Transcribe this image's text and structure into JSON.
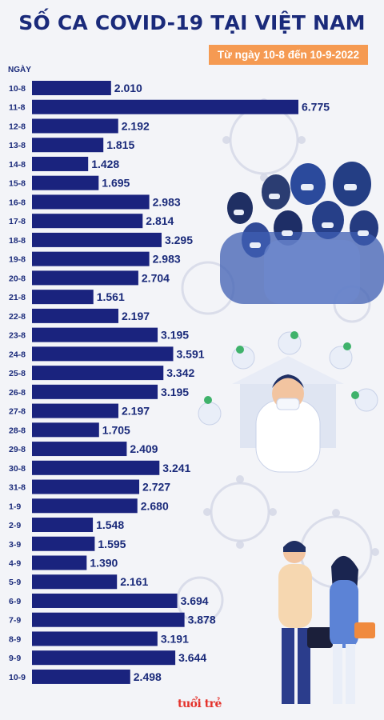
{
  "header": {
    "title": "SỐ CA COVID-19 TẠI VIỆT NAM",
    "subtitle": "Từ ngày 10-8 đến 10-9-2022"
  },
  "logo": "tuổi trẻ",
  "colors": {
    "bar": "#1a237e",
    "title": "#1a2a7a",
    "badge": "#f59a52",
    "background": "#f3f4f8"
  },
  "chart_data": {
    "type": "bar",
    "orientation": "horizontal",
    "ylabel": "NGÀY",
    "categories": [
      "10-8",
      "11-8",
      "12-8",
      "13-8",
      "14-8",
      "15-8",
      "16-8",
      "17-8",
      "18-8",
      "19-8",
      "20-8",
      "21-8",
      "22-8",
      "23-8",
      "24-8",
      "25-8",
      "26-8",
      "27-8",
      "28-8",
      "29-8",
      "30-8",
      "31-8",
      "1-9",
      "2-9",
      "3-9",
      "4-9",
      "5-9",
      "6-9",
      "7-9",
      "8-9",
      "9-9",
      "10-9"
    ],
    "values": [
      2010,
      6775,
      2192,
      1815,
      1428,
      1695,
      2983,
      2814,
      3295,
      2983,
      2704,
      1561,
      2197,
      3195,
      3591,
      3342,
      3195,
      2197,
      1705,
      2409,
      3241,
      2727,
      2680,
      1548,
      1595,
      1390,
      2161,
      3694,
      3878,
      3191,
      3644,
      2498
    ],
    "value_labels": [
      "2.010",
      "6.775",
      "2.192",
      "1.815",
      "1.428",
      "1.695",
      "2.983",
      "2.814",
      "3.295",
      "2.983",
      "2.704",
      "1.561",
      "2.197",
      "3.195",
      "3.591",
      "3.342",
      "3.195",
      "2.197",
      "1.705",
      "2.409",
      "3.241",
      "2.727",
      "2.680",
      "1.548",
      "1.595",
      "1.390",
      "2.161",
      "3.694",
      "3.878",
      "3.191",
      "3.644",
      "2.498"
    ],
    "grid": false,
    "legend": "none"
  }
}
